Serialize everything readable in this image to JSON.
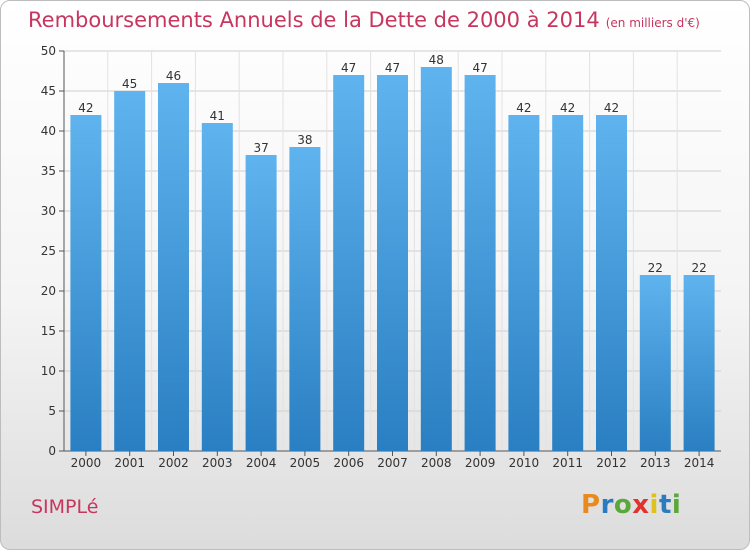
{
  "header": {
    "title": "Remboursements Annuels de la Dette de 2000 à 2014",
    "unit": "(en milliers d'€)"
  },
  "footer": {
    "commune": "SIMPLé",
    "logo_text": "Proxiti"
  },
  "colors": {
    "title": "#c8355f",
    "bar_top": "#5fb3ee",
    "bar_bottom": "#2a7fc2",
    "logo": [
      "#e88a1c",
      "#2b7bc0",
      "#5aa83a",
      "#e0332d",
      "#e0c01a",
      "#2b7bc0",
      "#5aa83a"
    ]
  },
  "chart_data": {
    "type": "bar",
    "categories": [
      "2000",
      "2001",
      "2002",
      "2003",
      "2004",
      "2005",
      "2006",
      "2007",
      "2008",
      "2009",
      "2010",
      "2011",
      "2012",
      "2013",
      "2014"
    ],
    "values": [
      42,
      45,
      46,
      41,
      37,
      38,
      47,
      47,
      48,
      47,
      42,
      42,
      42,
      22,
      22
    ],
    "ylim": [
      0,
      50
    ],
    "yticks": [
      0,
      5,
      10,
      15,
      20,
      25,
      30,
      35,
      40,
      45,
      50
    ],
    "grid": true,
    "legend": false
  }
}
